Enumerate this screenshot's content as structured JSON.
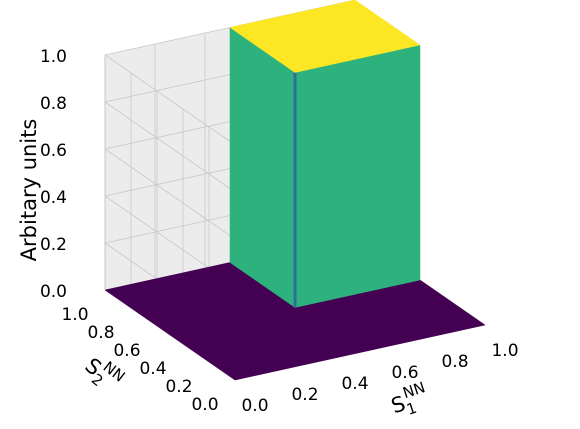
{
  "chart_data": {
    "type": "surface3d",
    "zlabel": "Arbitary units",
    "xlabel": {
      "base": "S",
      "sub": "1",
      "sup": "NN"
    },
    "ylabel": {
      "base": "S",
      "sub": "2",
      "sup": "NN"
    },
    "x_edges": [
      0,
      0.5,
      1
    ],
    "y_edges": [
      0,
      0.5,
      1
    ],
    "z": [
      [
        0,
        0
      ],
      [
        0,
        1
      ]
    ],
    "xlim": [
      0,
      1
    ],
    "ylim": [
      0,
      1
    ],
    "zlim": [
      0,
      1
    ],
    "xticks": [
      {
        "value": 0,
        "label": "0.0"
      },
      0.2,
      0.4,
      0.6,
      0.8,
      {
        "value": 1,
        "label": "1.0"
      }
    ],
    "yticks": [
      {
        "value": 0,
        "label": "0.0"
      },
      0.2,
      0.4,
      0.6,
      0.8,
      {
        "value": 1,
        "label": "1.0"
      }
    ],
    "zticks": [
      {
        "value": 0,
        "label": "0.0"
      },
      0.2,
      0.4,
      0.6,
      0.8,
      {
        "value": 1,
        "label": "1.0"
      }
    ],
    "colormap": [
      "#440154",
      "#2db27d",
      "#fde725"
    ],
    "grid": true
  }
}
